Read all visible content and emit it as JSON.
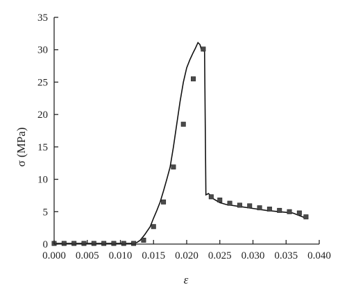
{
  "chart_data": {
    "type": "line",
    "xlabel": "ε",
    "ylabel": "σ (MPa)",
    "xlim": [
      0.0,
      0.04
    ],
    "ylim": [
      0,
      35
    ],
    "x_ticks": [
      "0.000",
      "0.005",
      "0.010",
      "0.015",
      "0.020",
      "0.025",
      "0.030",
      "0.035",
      "0.040"
    ],
    "y_ticks": [
      "0",
      "5",
      "10",
      "15",
      "20",
      "25",
      "30",
      "35"
    ],
    "grid": false,
    "legend": "none",
    "series": [
      {
        "line": [
          [
            0.0,
            0.1
          ],
          [
            0.004,
            0.1
          ],
          [
            0.008,
            0.1
          ],
          [
            0.0115,
            0.1
          ],
          [
            0.0125,
            0.25
          ],
          [
            0.013,
            0.6
          ],
          [
            0.0137,
            1.5
          ],
          [
            0.0145,
            2.7
          ],
          [
            0.015,
            4.0
          ],
          [
            0.0155,
            5.2
          ],
          [
            0.016,
            6.5
          ],
          [
            0.0165,
            8.2
          ],
          [
            0.017,
            10.0
          ],
          [
            0.0175,
            11.9
          ],
          [
            0.018,
            15.0
          ],
          [
            0.0185,
            18.5
          ],
          [
            0.019,
            22.0
          ],
          [
            0.0195,
            25.0
          ],
          [
            0.02,
            27.2
          ],
          [
            0.0205,
            28.5
          ],
          [
            0.021,
            29.6
          ],
          [
            0.0213,
            30.2
          ],
          [
            0.0217,
            31.1
          ],
          [
            0.022,
            30.8
          ],
          [
            0.0222,
            30.1
          ],
          [
            0.0225,
            30.3
          ],
          [
            0.0227,
            29.6
          ],
          [
            0.0229,
            7.6
          ],
          [
            0.0233,
            7.8
          ],
          [
            0.024,
            7.0
          ],
          [
            0.025,
            6.4
          ],
          [
            0.026,
            6.1
          ],
          [
            0.028,
            5.8
          ],
          [
            0.03,
            5.5
          ],
          [
            0.032,
            5.2
          ],
          [
            0.034,
            5.0
          ],
          [
            0.036,
            4.8
          ],
          [
            0.037,
            4.4
          ],
          [
            0.038,
            4.0
          ]
        ],
        "markers": [
          [
            0.0,
            0.1
          ],
          [
            0.0015,
            0.1
          ],
          [
            0.003,
            0.1
          ],
          [
            0.0045,
            0.1
          ],
          [
            0.006,
            0.1
          ],
          [
            0.0075,
            0.1
          ],
          [
            0.009,
            0.1
          ],
          [
            0.0105,
            0.1
          ],
          [
            0.012,
            0.1
          ],
          [
            0.0135,
            0.6
          ],
          [
            0.015,
            2.7
          ],
          [
            0.0165,
            6.5
          ],
          [
            0.018,
            11.9
          ],
          [
            0.0195,
            18.5
          ],
          [
            0.021,
            25.5
          ],
          [
            0.0225,
            30.1
          ],
          [
            0.0237,
            7.3
          ],
          [
            0.025,
            6.8
          ],
          [
            0.0265,
            6.3
          ],
          [
            0.028,
            6.0
          ],
          [
            0.0295,
            5.9
          ],
          [
            0.031,
            5.6
          ],
          [
            0.0325,
            5.4
          ],
          [
            0.034,
            5.2
          ],
          [
            0.0355,
            5.0
          ],
          [
            0.037,
            4.8
          ],
          [
            0.038,
            4.2
          ]
        ]
      }
    ]
  }
}
